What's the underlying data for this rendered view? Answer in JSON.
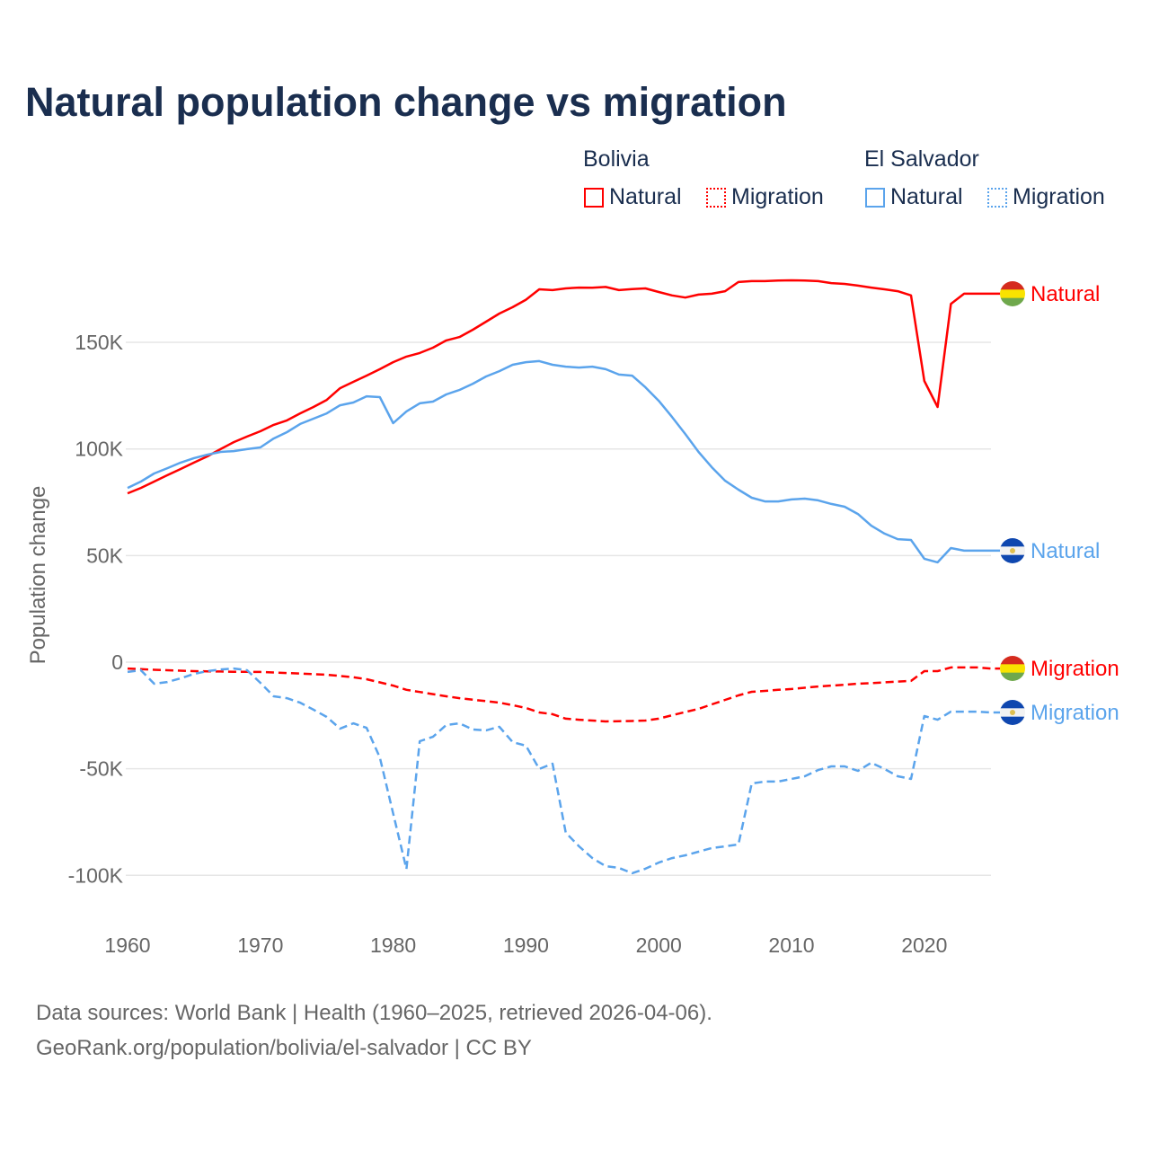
{
  "title": "Natural population change vs migration",
  "legend": {
    "groups": [
      {
        "name": "Bolivia",
        "items": [
          {
            "label": "Natural",
            "style": "solid"
          },
          {
            "label": "Migration",
            "style": "dotted"
          }
        ],
        "color": "#ff0000"
      },
      {
        "name": "El Salvador",
        "items": [
          {
            "label": "Natural",
            "style": "solid"
          },
          {
            "label": "Migration",
            "style": "dotted"
          }
        ],
        "color": "#5ba4ec"
      }
    ]
  },
  "footer": {
    "line1": "Data sources: World Bank | Health (1960–2025, retrieved 2026-04-06).",
    "line2": "GeoRank.org/population/bolivia/el-salvador | CC BY"
  },
  "chart_data": {
    "type": "line",
    "title": "Natural population change vs migration",
    "xlabel": "",
    "ylabel": "Population change",
    "xlim": [
      1960,
      2025
    ],
    "ylim": [
      -110000,
      190000
    ],
    "xticks": [
      1960,
      1970,
      1980,
      1990,
      2000,
      2010,
      2020
    ],
    "xtick_labels": [
      "1960",
      "1970",
      "1980",
      "1990",
      "2000",
      "2010",
      "2020"
    ],
    "yticks": [
      150000,
      100000,
      50000,
      0,
      -50000,
      -100000
    ],
    "ytick_labels": [
      "150K",
      "100K",
      "50K",
      "0",
      "-50K",
      "-100K"
    ],
    "grid": true,
    "legend_position": "top-right",
    "x": [
      1960,
      1961,
      1962,
      1963,
      1964,
      1965,
      1966,
      1967,
      1968,
      1969,
      1970,
      1971,
      1972,
      1973,
      1974,
      1975,
      1976,
      1977,
      1978,
      1979,
      1980,
      1981,
      1982,
      1983,
      1984,
      1985,
      1986,
      1987,
      1988,
      1989,
      1990,
      1991,
      1992,
      1993,
      1994,
      1995,
      1996,
      1997,
      1998,
      1999,
      2000,
      2001,
      2002,
      2003,
      2004,
      2005,
      2006,
      2007,
      2008,
      2009,
      2010,
      2011,
      2012,
      2013,
      2014,
      2015,
      2016,
      2017,
      2018,
      2019,
      2020,
      2021,
      2022,
      2023,
      2024,
      2025
    ],
    "series": [
      {
        "name": "Bolivia Natural",
        "end_label": "Natural",
        "color": "#ff0000",
        "dash": false,
        "flag": "bolivia",
        "values": [
          79200,
          81700,
          84700,
          87700,
          90600,
          93600,
          96500,
          99900,
          103200,
          105800,
          108300,
          111300,
          113400,
          116700,
          119700,
          123000,
          128500,
          131500,
          134400,
          137400,
          140700,
          143300,
          145000,
          147500,
          150900,
          152500,
          155900,
          159700,
          163500,
          166500,
          170000,
          174900,
          174500,
          175300,
          175700,
          175600,
          176000,
          174500,
          175000,
          175300,
          173600,
          172000,
          171000,
          172400,
          172800,
          174000,
          178300,
          178700,
          178700,
          179000,
          179100,
          179000,
          178700,
          177800,
          177400,
          176600,
          175700,
          174900,
          174000,
          172000,
          131900,
          119700,
          168000,
          172800,
          172800,
          172800
        ]
      },
      {
        "name": "El Salvador Natural",
        "end_label": "Natural",
        "color": "#5ba4ec",
        "dash": false,
        "flag": "el-salvador",
        "values": [
          81700,
          84700,
          88500,
          91000,
          93600,
          95700,
          97300,
          98600,
          99000,
          99900,
          100700,
          104900,
          107900,
          111700,
          114200,
          116700,
          120500,
          121800,
          124700,
          124300,
          112100,
          117600,
          121400,
          122200,
          125600,
          127700,
          130600,
          134000,
          136500,
          139500,
          140700,
          141200,
          139500,
          138600,
          138200,
          138600,
          137400,
          134900,
          134400,
          128900,
          122600,
          115000,
          107000,
          98600,
          91400,
          85100,
          80900,
          77100,
          75400,
          75400,
          76300,
          76700,
          75900,
          74200,
          72900,
          69500,
          64000,
          60300,
          57700,
          57300,
          48500,
          46800,
          53500,
          52300,
          52300,
          52300
        ]
      },
      {
        "name": "Bolivia Migration",
        "end_label": "Migration",
        "color": "#ff0000",
        "dash": true,
        "flag": "bolivia",
        "values": [
          -3000,
          -3300,
          -3600,
          -3800,
          -4000,
          -4200,
          -4300,
          -4400,
          -4500,
          -4550,
          -4600,
          -4850,
          -5100,
          -5350,
          -5600,
          -5900,
          -6500,
          -7100,
          -8000,
          -9500,
          -11000,
          -13000,
          -14000,
          -15000,
          -16000,
          -16900,
          -17600,
          -18300,
          -19000,
          -20200,
          -21500,
          -23600,
          -24400,
          -26500,
          -27000,
          -27400,
          -27800,
          -27700,
          -27600,
          -27400,
          -26500,
          -24900,
          -23400,
          -21900,
          -19800,
          -17700,
          -15600,
          -13900,
          -13500,
          -13000,
          -12600,
          -12000,
          -11400,
          -11000,
          -10600,
          -10100,
          -9800,
          -9500,
          -9100,
          -8800,
          -4200,
          -4200,
          -2500,
          -2500,
          -2500,
          -3000
        ]
      },
      {
        "name": "El Salvador Migration",
        "end_label": "Migration",
        "color": "#5ba4ec",
        "dash": true,
        "flag": "el-salvador",
        "values": [
          -4600,
          -3800,
          -10100,
          -9300,
          -7600,
          -5500,
          -4200,
          -3400,
          -3000,
          -3800,
          -9700,
          -16000,
          -16900,
          -19000,
          -22300,
          -25700,
          -31200,
          -28700,
          -30800,
          -44700,
          -71000,
          -97000,
          -37100,
          -35000,
          -29500,
          -28700,
          -31600,
          -32000,
          -30300,
          -37500,
          -39200,
          -50100,
          -47600,
          -80000,
          -86400,
          -91900,
          -95700,
          -96500,
          -99000,
          -96900,
          -94000,
          -91900,
          -90600,
          -88900,
          -87200,
          -86400,
          -85500,
          -56900,
          -56000,
          -56000,
          -54800,
          -53500,
          -50600,
          -48900,
          -48900,
          -51000,
          -47200,
          -50100,
          -53500,
          -54800,
          -25300,
          -27000,
          -23200,
          -23200,
          -23200,
          -23600
        ]
      }
    ]
  }
}
